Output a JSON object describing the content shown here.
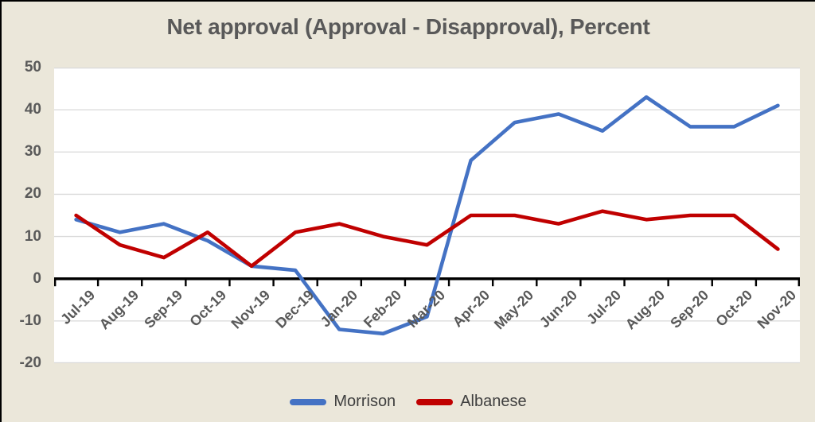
{
  "title": "Net approval (Approval - Disapproval), Percent",
  "colors": {
    "background": "#EBE7DA",
    "plot_background": "#FFFFFF",
    "gridline": "#D9D9D9",
    "axis": "#000000",
    "axis_text": "#595959",
    "legend_text": "#3F3F3F",
    "morrison": "#4472C4",
    "albanese": "#C00000"
  },
  "chart_data": {
    "type": "line",
    "categories": [
      "Jul-19",
      "Aug-19",
      "Sep-19",
      "Oct-19",
      "Nov-19",
      "Dec-19",
      "Jan-20",
      "Feb-20",
      "Mar-20",
      "Apr-20",
      "May-20",
      "Jun-20",
      "Jul-20",
      "Aug-20",
      "Sep-20",
      "Oct-20",
      "Nov-20"
    ],
    "series": [
      {
        "name": "Morrison",
        "color": "#4472C4",
        "values": [
          14,
          11,
          13,
          9,
          3,
          2,
          -12,
          -13,
          -9,
          28,
          37,
          39,
          35,
          43,
          36,
          36,
          41
        ]
      },
      {
        "name": "Albanese",
        "color": "#C00000",
        "values": [
          15,
          8,
          5,
          11,
          3,
          11,
          13,
          10,
          8,
          15,
          15,
          13,
          16,
          14,
          15,
          15,
          7
        ]
      }
    ],
    "title": "Net approval (Approval - Disapproval), Percent",
    "xlabel": "",
    "ylabel": "",
    "ylim": [
      -20,
      50
    ],
    "yticks": [
      50,
      40,
      30,
      20,
      10,
      0,
      -10,
      -20
    ],
    "grid": true,
    "legend_position": "bottom"
  }
}
